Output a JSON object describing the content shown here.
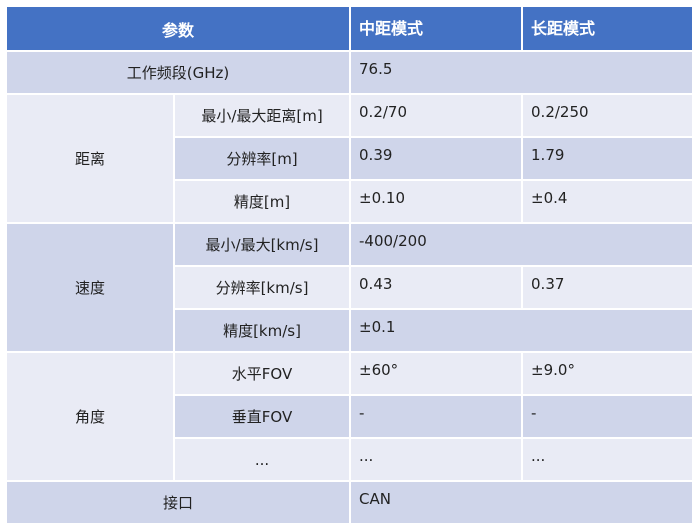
{
  "header": {
    "param": "参数",
    "mid": "中距模式",
    "long": "长距模式"
  },
  "rows": {
    "freq": {
      "label": "工作频段(GHz)",
      "value": "76.5"
    },
    "distance": {
      "group": "距离",
      "minmax": {
        "label": "最小/最大距离[m]",
        "mid": "0.2/70",
        "long": "0.2/250"
      },
      "resolution": {
        "label": "分辨率[m]",
        "mid": "0.39",
        "long": "1.79"
      },
      "accuracy": {
        "label": "精度[m]",
        "mid": "±0.10",
        "long": "±0.4"
      }
    },
    "speed": {
      "group": "速度",
      "minmax": {
        "label": "最小/最大[km/s]",
        "value": "-400/200"
      },
      "resolution": {
        "label": "分辨率[km/s]",
        "mid": "0.43",
        "long": "0.37"
      },
      "accuracy": {
        "label": "精度[km/s]",
        "value": "±0.1"
      }
    },
    "angle": {
      "group": "角度",
      "hfov": {
        "label": "水平FOV",
        "mid": "±60°",
        "long": "±9.0°"
      },
      "vfov": {
        "label": "垂直FOV",
        "mid": "-",
        "long": "-"
      },
      "more": {
        "label": "...",
        "mid": "...",
        "long": "..."
      }
    },
    "interface": {
      "label": "接口",
      "value": "CAN"
    }
  }
}
